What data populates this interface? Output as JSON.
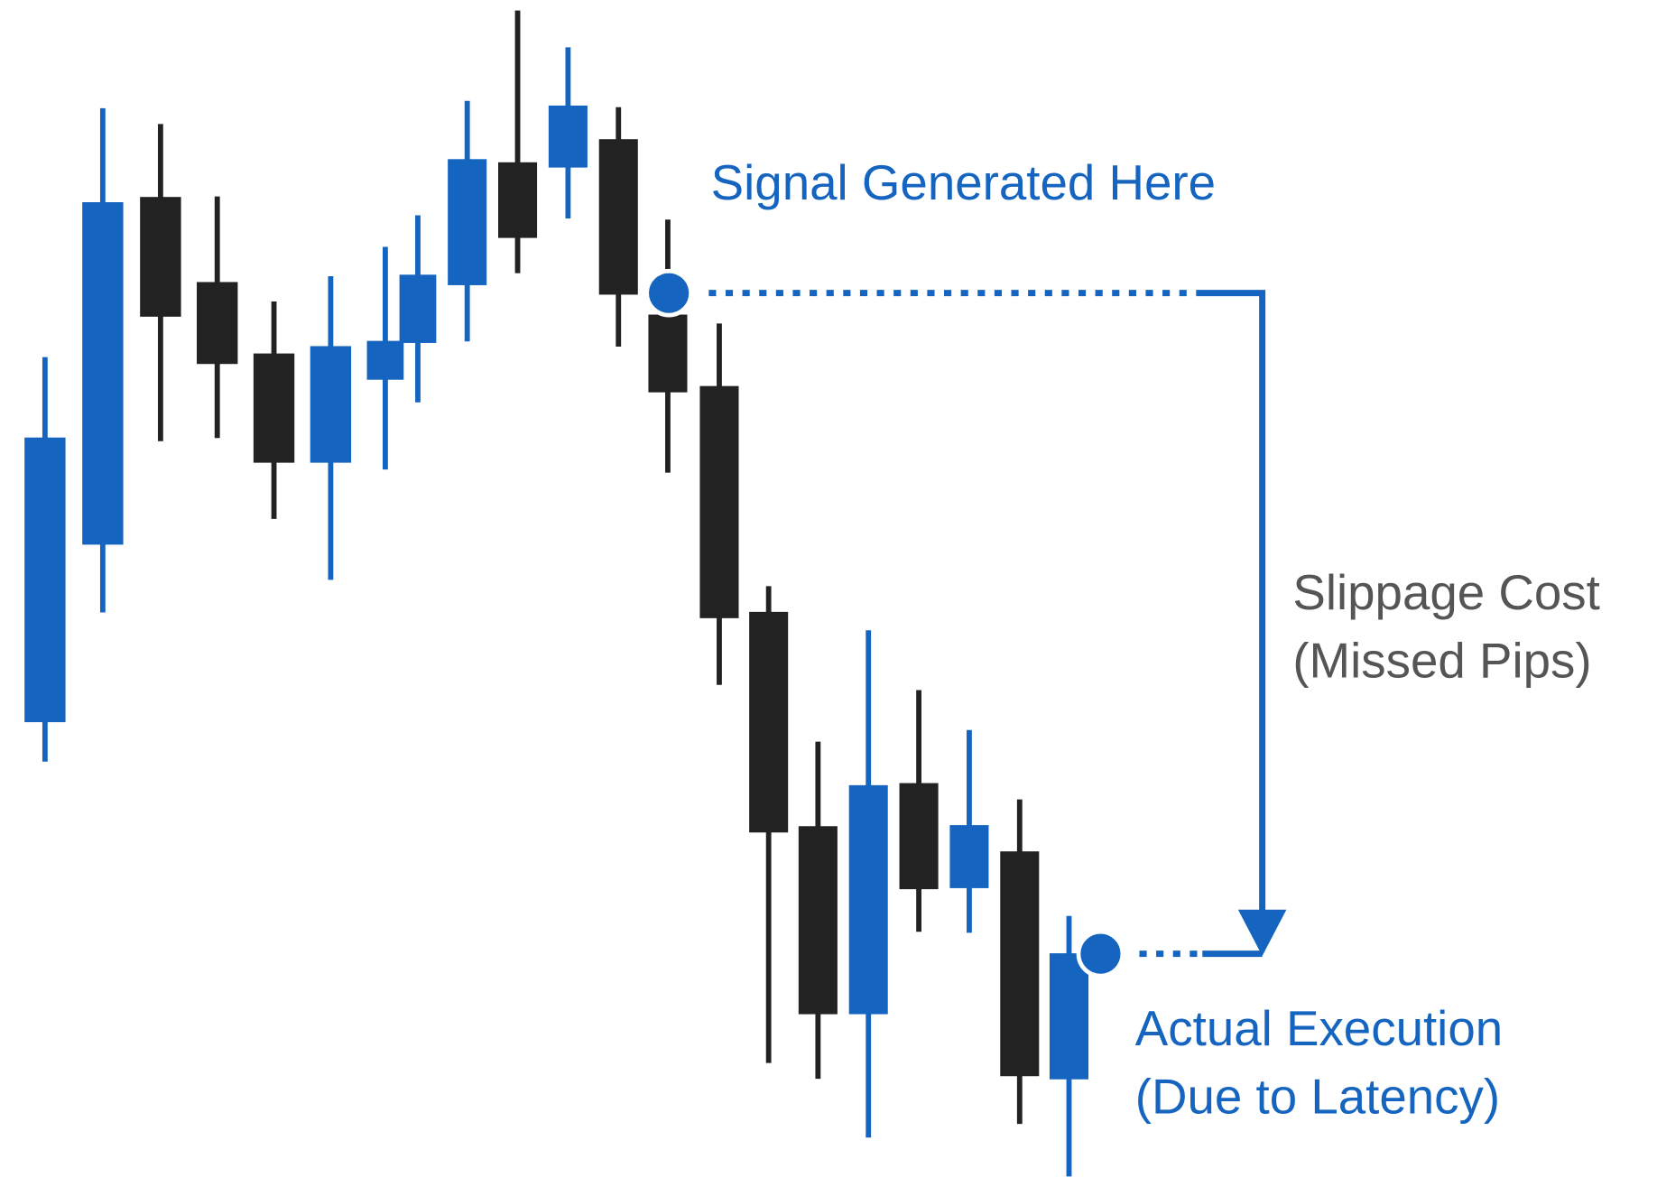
{
  "labels": {
    "signal": "Signal Generated Here",
    "slippage": [
      "Slippage Cost",
      "(Missed Pips)"
    ],
    "execution": [
      "Actual Execution",
      "(Due to Latency)"
    ]
  }
}
